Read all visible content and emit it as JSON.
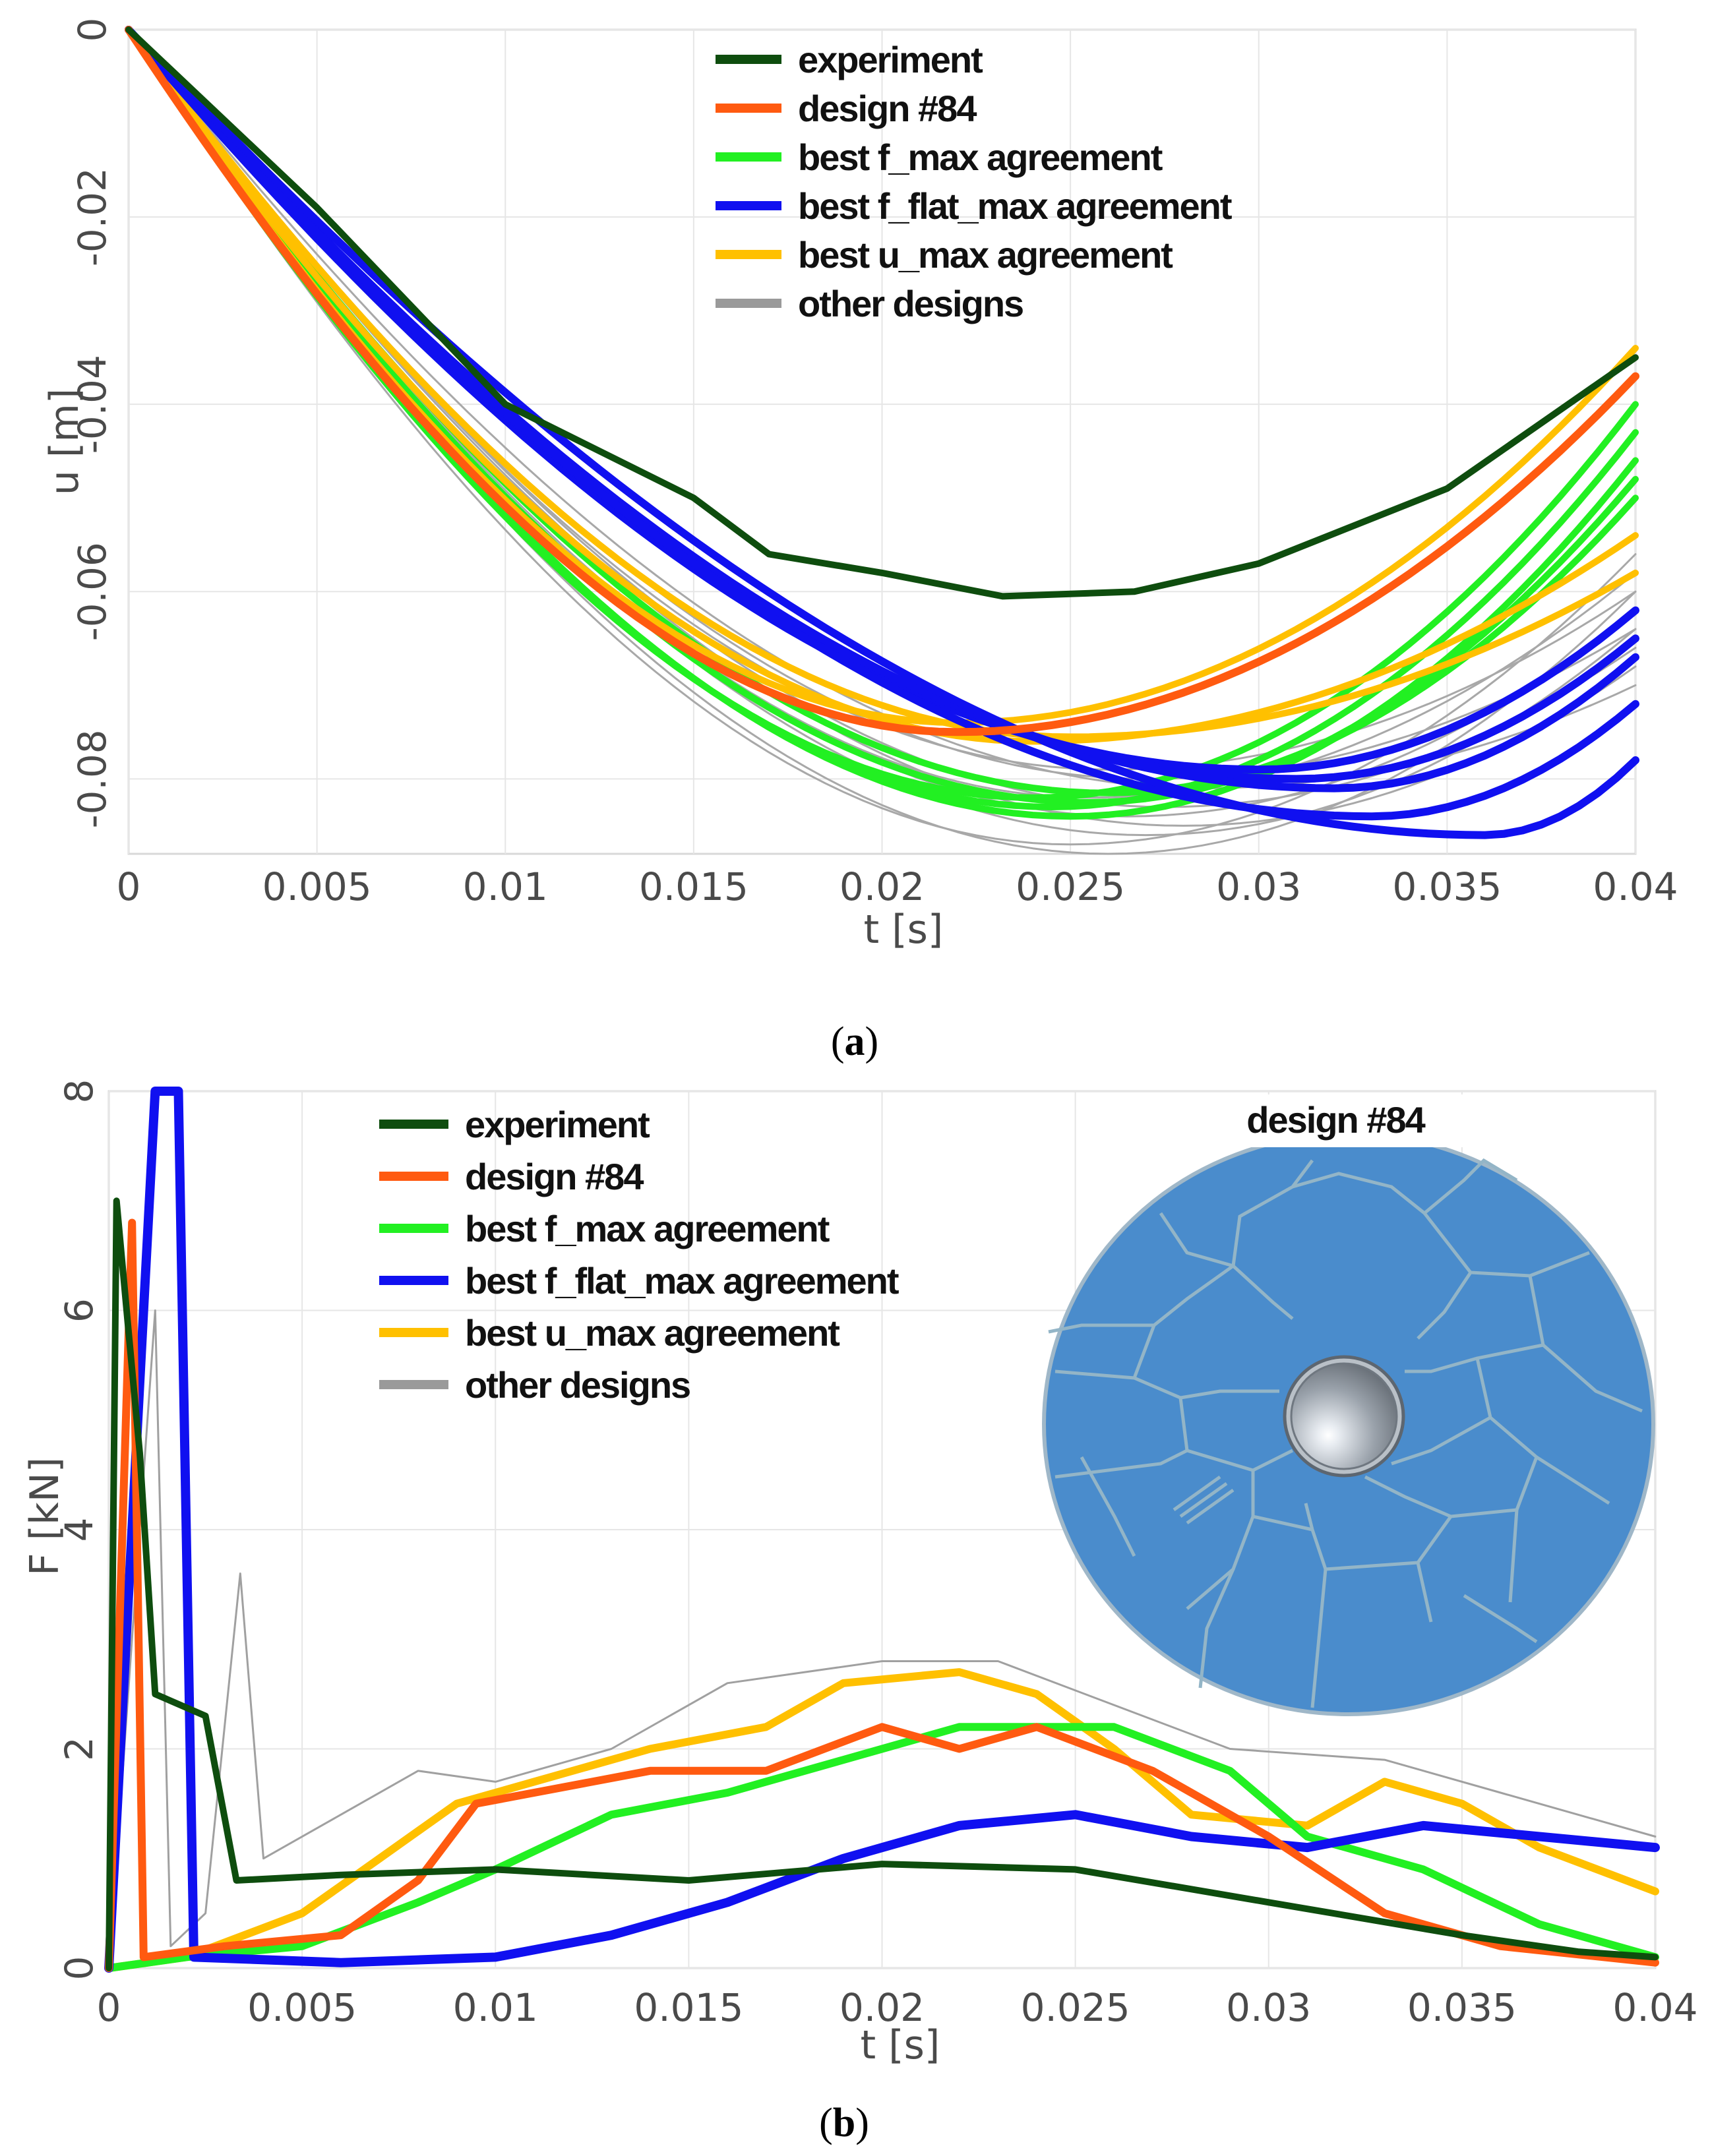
{
  "chart_data": [
    {
      "type": "line",
      "panel": "a",
      "caption_letter": "a",
      "xlabel": "t [s]",
      "ylabel": "u [m]",
      "xlim": [
        0,
        0.04
      ],
      "ylim": [
        -0.088,
        0
      ],
      "x_ticks": [
        0,
        0.005,
        0.01,
        0.015,
        0.02,
        0.025,
        0.03,
        0.035,
        0.04
      ],
      "x_tick_labels": [
        "0",
        "0.005",
        "0.01",
        "0.015",
        "0.02",
        "0.025",
        "0.03",
        "0.035",
        "0.04"
      ],
      "y_ticks": [
        0,
        -0.02,
        -0.04,
        -0.06,
        -0.08
      ],
      "y_tick_labels": [
        "0",
        "-0.02",
        "-0.04",
        "-0.06",
        "-0.08"
      ],
      "legend": [
        {
          "label": "experiment",
          "color": "#0e4d0e"
        },
        {
          "label": "design #84",
          "color": "#ff5a10"
        },
        {
          "label": "best f_max agreement",
          "color": "#22f022"
        },
        {
          "label": "best f_flat_max agreement",
          "color": "#1010f0"
        },
        {
          "label": "best u_max agreement",
          "color": "#ffc000"
        },
        {
          "label": "other designs",
          "color": "#9a9a9a"
        }
      ],
      "series": [
        {
          "name": "other designs",
          "color": "#a8a8a8",
          "width": 3,
          "curves": [
            {
              "min_t": 0.025,
              "min_u": -0.087,
              "end_u": -0.056
            },
            {
              "min_t": 0.026,
              "min_u": -0.088,
              "end_u": -0.06
            },
            {
              "min_t": 0.027,
              "min_u": -0.086,
              "end_u": -0.064
            },
            {
              "min_t": 0.028,
              "min_u": -0.085,
              "end_u": -0.068
            },
            {
              "min_t": 0.0265,
              "min_u": -0.084,
              "end_u": -0.062
            },
            {
              "min_t": 0.0275,
              "min_u": -0.083,
              "end_u": -0.066
            },
            {
              "min_t": 0.0255,
              "min_u": -0.082,
              "end_u": -0.058
            },
            {
              "min_t": 0.0285,
              "min_u": -0.081,
              "end_u": -0.07
            },
            {
              "min_t": 0.027,
              "min_u": -0.08,
              "end_u": -0.064
            },
            {
              "min_t": 0.026,
              "min_u": -0.079,
              "end_u": -0.06
            }
          ]
        },
        {
          "name": "best f_max agreement",
          "color": "#22f022",
          "width": 10,
          "curves": [
            {
              "min_t": 0.024,
              "min_u": -0.082,
              "end_u": -0.04
            },
            {
              "min_t": 0.0245,
              "min_u": -0.083,
              "end_u": -0.043
            },
            {
              "min_t": 0.025,
              "min_u": -0.084,
              "end_u": -0.046
            },
            {
              "min_t": 0.0255,
              "min_u": -0.0825,
              "end_u": -0.048
            },
            {
              "min_t": 0.026,
              "min_u": -0.0815,
              "end_u": -0.05
            }
          ]
        },
        {
          "name": "best u_max agreement",
          "color": "#ffc000",
          "width": 10,
          "curves": [
            {
              "min_t": 0.022,
              "min_u": -0.074,
              "end_u": -0.034
            },
            {
              "min_t": 0.024,
              "min_u": -0.076,
              "end_u": -0.054
            },
            {
              "min_t": 0.025,
              "min_u": -0.0755,
              "end_u": -0.058
            }
          ]
        },
        {
          "name": "best f_flat_max agreement",
          "color": "#1010f0",
          "width": 12,
          "curves": [
            {
              "min_t": 0.03,
              "min_u": -0.079,
              "end_u": -0.062
            },
            {
              "min_t": 0.031,
              "min_u": -0.08,
              "end_u": -0.065
            },
            {
              "min_t": 0.032,
              "min_u": -0.081,
              "end_u": -0.067
            },
            {
              "min_t": 0.033,
              "min_u": -0.084,
              "end_u": -0.072
            },
            {
              "min_t": 0.036,
              "min_u": -0.086,
              "end_u": -0.078
            }
          ]
        },
        {
          "name": "design #84",
          "color": "#ff5a10",
          "width": 12,
          "curves": [
            {
              "min_t": 0.022,
              "min_u": -0.075,
              "end_u": -0.037
            }
          ]
        },
        {
          "name": "experiment",
          "color": "#0e4d0e",
          "width": 10,
          "points": [
            [
              0,
              0
            ],
            [
              0.005,
              -0.019
            ],
            [
              0.01,
              -0.04
            ],
            [
              0.015,
              -0.05
            ],
            [
              0.017,
              -0.056
            ],
            [
              0.02,
              -0.058
            ],
            [
              0.0232,
              -0.0605
            ],
            [
              0.0267,
              -0.06
            ],
            [
              0.03,
              -0.057
            ],
            [
              0.035,
              -0.049
            ],
            [
              0.04,
              -0.035
            ]
          ]
        }
      ]
    },
    {
      "type": "line",
      "panel": "b",
      "caption_letter": "b",
      "xlabel": "t [s]",
      "ylabel": "F [kN]",
      "xlim": [
        0,
        0.04
      ],
      "ylim": [
        0,
        8
      ],
      "x_ticks": [
        0,
        0.005,
        0.01,
        0.015,
        0.02,
        0.025,
        0.03,
        0.035,
        0.04
      ],
      "x_tick_labels": [
        "0",
        "0.005",
        "0.01",
        "0.015",
        "0.02",
        "0.025",
        "0.03",
        "0.035",
        "0.04"
      ],
      "y_ticks": [
        0,
        2,
        4,
        6,
        8
      ],
      "y_tick_labels": [
        "0",
        "2",
        "4",
        "6",
        "8"
      ],
      "inset_title": "design #84",
      "legend": [
        {
          "label": "experiment",
          "color": "#0e4d0e"
        },
        {
          "label": "design #84",
          "color": "#ff5a10"
        },
        {
          "label": "best f_max agreement",
          "color": "#22f022"
        },
        {
          "label": "best f_flat_max agreement",
          "color": "#1010f0"
        },
        {
          "label": "best u_max agreement",
          "color": "#ffc000"
        },
        {
          "label": "other designs",
          "color": "#9a9a9a"
        }
      ],
      "series": [
        {
          "name": "other designs",
          "color": "#a0a0a0",
          "width": 3,
          "points": [
            [
              0,
              0
            ],
            [
              0.0012,
              6.0
            ],
            [
              0.0016,
              0.2
            ],
            [
              0.0025,
              0.5
            ],
            [
              0.0034,
              3.6
            ],
            [
              0.004,
              1.0
            ],
            [
              0.006,
              1.4
            ],
            [
              0.008,
              1.8
            ],
            [
              0.01,
              1.7
            ],
            [
              0.013,
              2.0
            ],
            [
              0.016,
              2.6
            ],
            [
              0.02,
              2.8
            ],
            [
              0.023,
              2.8
            ],
            [
              0.026,
              2.4
            ],
            [
              0.029,
              2.0
            ],
            [
              0.033,
              1.9
            ],
            [
              0.036,
              1.6
            ],
            [
              0.04,
              1.2
            ]
          ]
        },
        {
          "name": "best u_max agreement",
          "color": "#ffc000",
          "width": 12,
          "points": [
            [
              0,
              0
            ],
            [
              0.002,
              0.1
            ],
            [
              0.005,
              0.5
            ],
            [
              0.007,
              1.0
            ],
            [
              0.009,
              1.5
            ],
            [
              0.011,
              1.7
            ],
            [
              0.014,
              2.0
            ],
            [
              0.017,
              2.2
            ],
            [
              0.019,
              2.6
            ],
            [
              0.022,
              2.7
            ],
            [
              0.024,
              2.5
            ],
            [
              0.026,
              2.0
            ],
            [
              0.028,
              1.4
            ],
            [
              0.031,
              1.3
            ],
            [
              0.033,
              1.7
            ],
            [
              0.035,
              1.5
            ],
            [
              0.037,
              1.1
            ],
            [
              0.04,
              0.7
            ]
          ]
        },
        {
          "name": "best f_max agreement",
          "color": "#22f022",
          "width": 12,
          "points": [
            [
              0,
              0
            ],
            [
              0.002,
              0.1
            ],
            [
              0.005,
              0.2
            ],
            [
              0.008,
              0.6
            ],
            [
              0.01,
              0.9
            ],
            [
              0.013,
              1.4
            ],
            [
              0.016,
              1.6
            ],
            [
              0.019,
              1.9
            ],
            [
              0.022,
              2.2
            ],
            [
              0.026,
              2.2
            ],
            [
              0.029,
              1.8
            ],
            [
              0.031,
              1.2
            ],
            [
              0.034,
              0.9
            ],
            [
              0.037,
              0.4
            ],
            [
              0.04,
              0.1
            ]
          ]
        },
        {
          "name": "best f_flat_max agreement",
          "color": "#1010f0",
          "width": 14,
          "points": [
            [
              0,
              0
            ],
            [
              0.0012,
              8.0
            ],
            [
              0.0018,
              8.0
            ],
            [
              0.0022,
              0.1
            ],
            [
              0.006,
              0.05
            ],
            [
              0.01,
              0.1
            ],
            [
              0.013,
              0.3
            ],
            [
              0.016,
              0.6
            ],
            [
              0.019,
              1.0
            ],
            [
              0.022,
              1.3
            ],
            [
              0.025,
              1.4
            ],
            [
              0.028,
              1.2
            ],
            [
              0.031,
              1.1
            ],
            [
              0.034,
              1.3
            ],
            [
              0.037,
              1.2
            ],
            [
              0.04,
              1.1
            ]
          ]
        },
        {
          "name": "design #84",
          "color": "#ff5a10",
          "width": 12,
          "points": [
            [
              0,
              0
            ],
            [
              0.0006,
              6.8
            ],
            [
              0.0009,
              0.1
            ],
            [
              0.003,
              0.2
            ],
            [
              0.006,
              0.3
            ],
            [
              0.008,
              0.8
            ],
            [
              0.0095,
              1.5
            ],
            [
              0.011,
              1.6
            ],
            [
              0.014,
              1.8
            ],
            [
              0.017,
              1.8
            ],
            [
              0.02,
              2.2
            ],
            [
              0.022,
              2.0
            ],
            [
              0.024,
              2.2
            ],
            [
              0.027,
              1.8
            ],
            [
              0.03,
              1.2
            ],
            [
              0.033,
              0.5
            ],
            [
              0.036,
              0.2
            ],
            [
              0.04,
              0.05
            ]
          ]
        },
        {
          "name": "experiment",
          "color": "#0e4d0e",
          "width": 10,
          "points": [
            [
              0,
              0
            ],
            [
              0.0002,
              7.0
            ],
            [
              0.0008,
              4.7
            ],
            [
              0.0012,
              2.5
            ],
            [
              0.0025,
              2.3
            ],
            [
              0.0033,
              0.8
            ],
            [
              0.006,
              0.85
            ],
            [
              0.01,
              0.9
            ],
            [
              0.015,
              0.8
            ],
            [
              0.02,
              0.95
            ],
            [
              0.025,
              0.9
            ],
            [
              0.03,
              0.6
            ],
            [
              0.035,
              0.3
            ],
            [
              0.038,
              0.15
            ],
            [
              0.04,
              0.1
            ]
          ]
        }
      ]
    }
  ]
}
